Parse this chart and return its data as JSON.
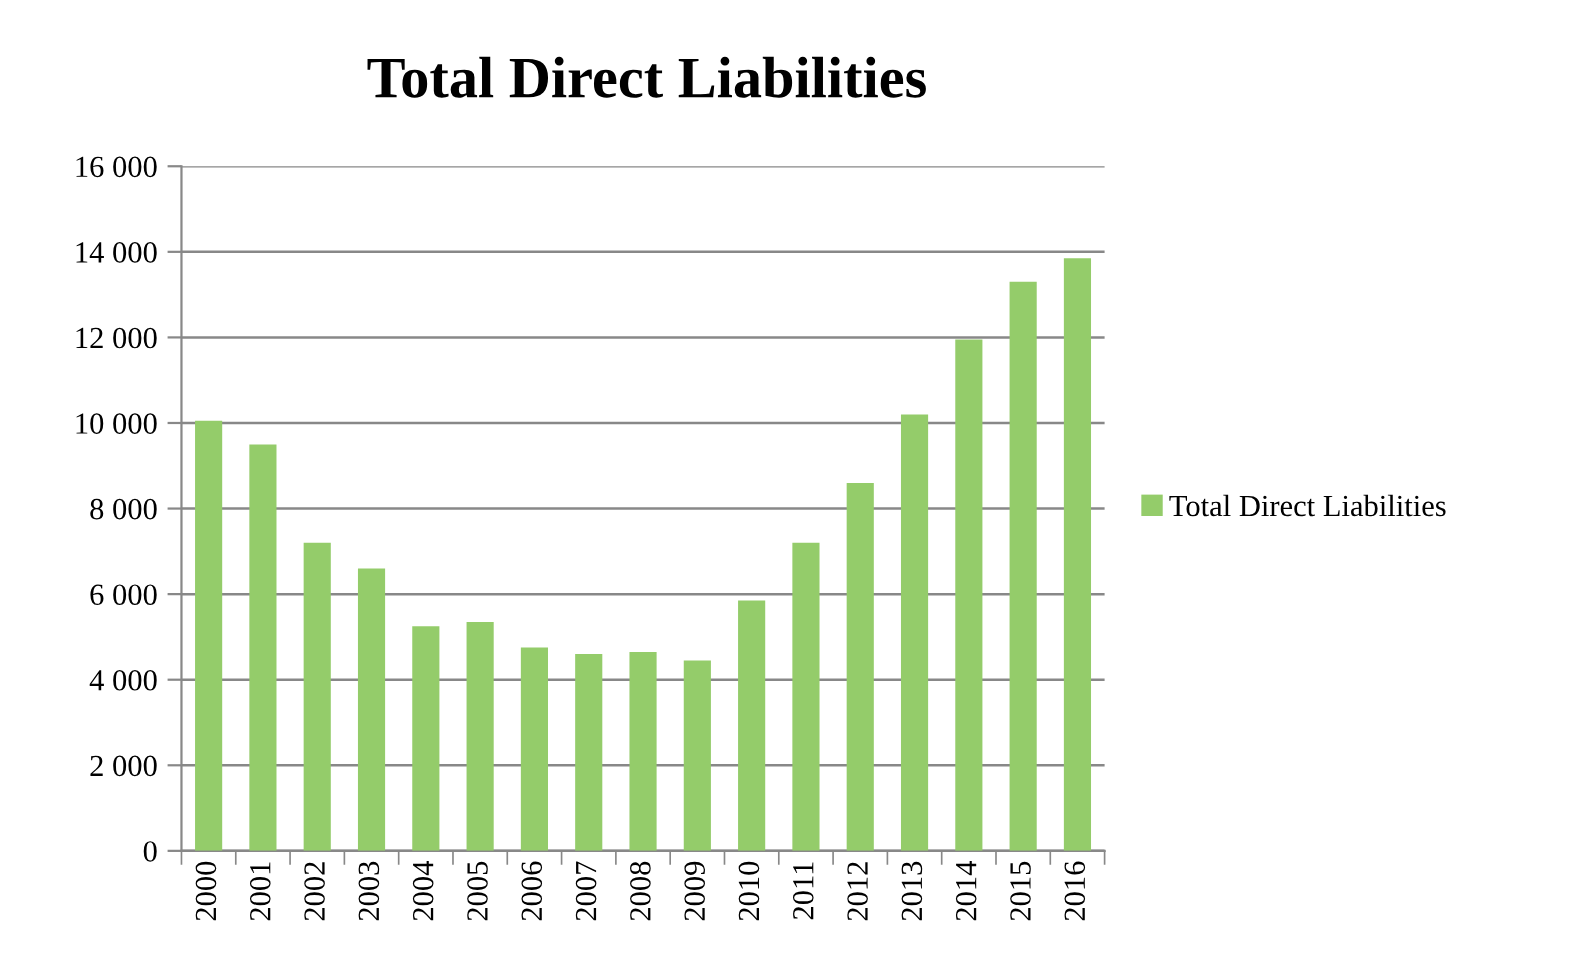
{
  "chart_data": {
    "type": "bar",
    "title": "Total Direct Liabilities",
    "categories": [
      "2000",
      "2001",
      "2002",
      "2003",
      "2004",
      "2005",
      "2006",
      "2007",
      "2008",
      "2009",
      "2010",
      "2011",
      "2012",
      "2013",
      "2014",
      "2015",
      "2016"
    ],
    "series": [
      {
        "name": "Total Direct Liabilities",
        "color": "#94cc6a",
        "values": [
          10050,
          9500,
          7200,
          6600,
          5250,
          5350,
          4750,
          4600,
          4650,
          4450,
          5850,
          7200,
          8600,
          10200,
          11950,
          13300,
          13850
        ]
      }
    ],
    "ylim": [
      0,
      16000
    ],
    "yticks": [
      {
        "value": 0,
        "label": "0"
      },
      {
        "value": 2000,
        "label": "2 000"
      },
      {
        "value": 4000,
        "label": "4 000"
      },
      {
        "value": 6000,
        "label": "6 000"
      },
      {
        "value": 8000,
        "label": "8 000"
      },
      {
        "value": 10000,
        "label": "10 000"
      },
      {
        "value": 12000,
        "label": "12 000"
      },
      {
        "value": 14000,
        "label": "14 000"
      },
      {
        "value": 16000,
        "label": "16 000"
      }
    ],
    "grid": "y",
    "legend": "right"
  }
}
